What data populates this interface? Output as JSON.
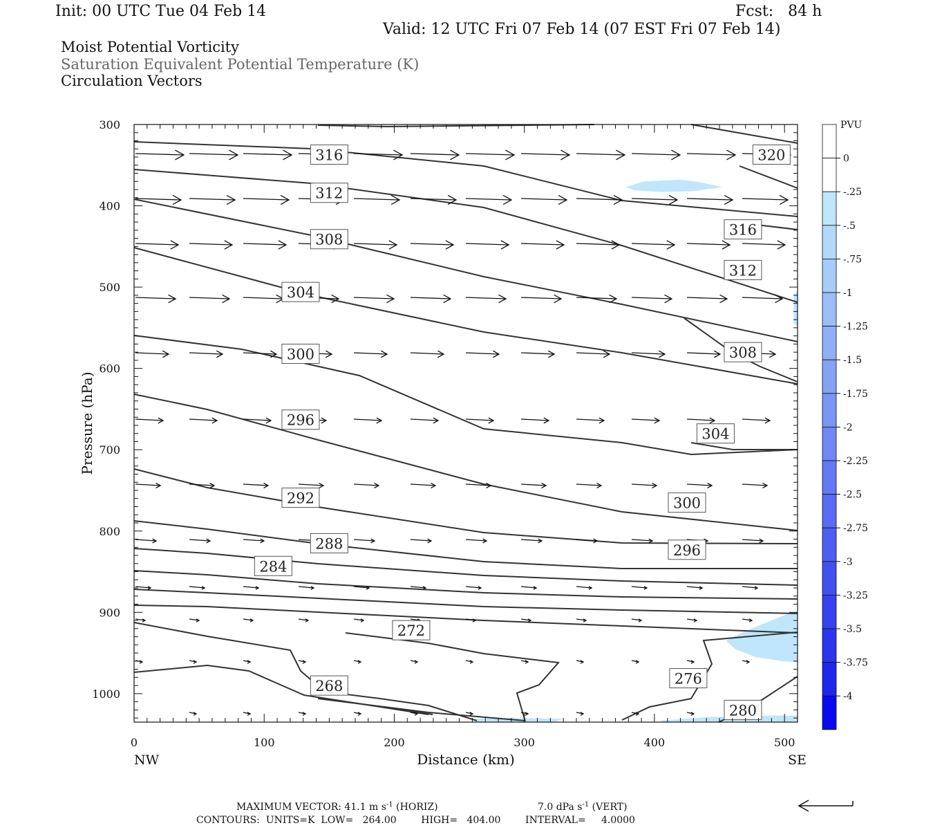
{
  "header": {
    "init": "Init: 00 UTC Tue 04 Feb 14",
    "fcst": "Fcst:   84 h",
    "valid": "Valid: 12 UTC Fri 07 Feb 14 (07 EST Fri 07 Feb 14)",
    "title_1": "Moist Potential Vorticity",
    "title_2": "Saturation Equivalent Potential Temperature (K)",
    "title_3": "Circulation Vectors"
  },
  "chart_data": {
    "type": "contour-cross-section",
    "xlabel": "Distance (km)",
    "ylabel": "Pressure (hPa)",
    "xlim": [
      0,
      510
    ],
    "ylim": [
      1035,
      300
    ],
    "x_ticks": [
      "0",
      "100",
      "200",
      "300",
      "400",
      "500"
    ],
    "y_ticks": [
      "300",
      "400",
      "500",
      "600",
      "700",
      "800",
      "900",
      "1000"
    ],
    "x_end_left": "NW",
    "x_end_right": "SE",
    "contour_labels": [
      {
        "text": "316",
        "x": 150,
        "p": 337
      },
      {
        "text": "312",
        "x": 150,
        "p": 384
      },
      {
        "text": "308",
        "x": 150,
        "p": 441
      },
      {
        "text": "304",
        "x": 128,
        "p": 506
      },
      {
        "text": "300",
        "x": 128,
        "p": 582
      },
      {
        "text": "296",
        "x": 128,
        "p": 663
      },
      {
        "text": "292",
        "x": 128,
        "p": 759
      },
      {
        "text": "288",
        "x": 150,
        "p": 815
      },
      {
        "text": "284",
        "x": 107,
        "p": 843
      },
      {
        "text": "272",
        "x": 213,
        "p": 922
      },
      {
        "text": "268",
        "x": 150,
        "p": 990
      },
      {
        "text": "320",
        "x": 490,
        "p": 337
      },
      {
        "text": "316",
        "x": 468,
        "p": 429
      },
      {
        "text": "312",
        "x": 468,
        "p": 479
      },
      {
        "text": "308",
        "x": 468,
        "p": 580
      },
      {
        "text": "304",
        "x": 447,
        "p": 680
      },
      {
        "text": "300",
        "x": 425,
        "p": 765
      },
      {
        "text": "296",
        "x": 425,
        "p": 823
      },
      {
        "text": "276",
        "x": 426,
        "p": 981
      },
      {
        "text": "280",
        "x": 468,
        "p": 1020
      }
    ],
    "colorbar": {
      "unit": "PVU",
      "labels": [
        "0",
        "-.25",
        "-.5",
        "-.75",
        "-1",
        "-1.25",
        "-1.5",
        "-1.75",
        "-2",
        "-2.25",
        "-2.5",
        "-2.75",
        "-3",
        "-3.25",
        "-3.5",
        "-3.75",
        "-4"
      ],
      "colors": [
        "#ffffff",
        "#ffffff",
        "#bfe6fb",
        "#b4d8fa",
        "#a8cbf9",
        "#9dbdf8",
        "#91aff7",
        "#86a2f6",
        "#7b95f5",
        "#7087f4",
        "#6479f3",
        "#596bf2",
        "#4d5ef1",
        "#4250f0",
        "#3642ef",
        "#2b34ee",
        "#1f27ed",
        "#0a0af0"
      ]
    },
    "footer": {
      "max_vector": "MAXIMUM VECTOR:  41.1 m s",
      "max_vector_exp": "-1",
      "max_vector_horiz": " (HORIZ)",
      "vert": "7.0 dPa s",
      "vert_exp": "-1",
      "vert_tail": " (VERT)",
      "contours": "CONTOURS:  UNITS=K  LOW=   264.00        HIGH=   404.00        INTERVAL=     4.0000"
    },
    "colors": {
      "contour": "#333333",
      "pv_shade": "#bfe6fb",
      "axis": "#111111"
    }
  }
}
